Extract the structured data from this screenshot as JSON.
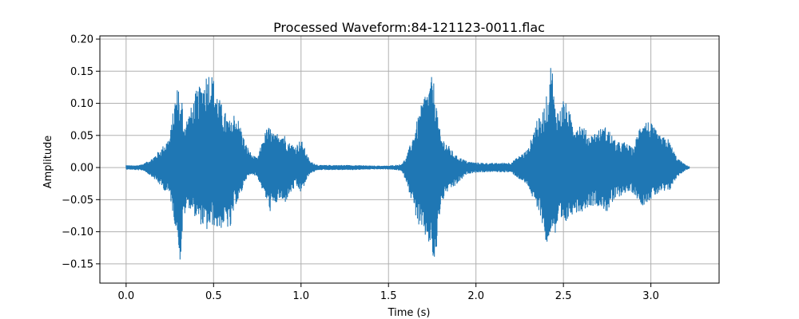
{
  "chart_data": {
    "type": "line",
    "title": "Processed Waveform:84-121123-0011.flac",
    "xlabel": "Time (s)",
    "ylabel": "Amplitude",
    "xlim": [
      -0.15,
      3.39
    ],
    "ylim": [
      -0.18,
      0.205
    ],
    "xticks": [
      0.0,
      0.5,
      1.0,
      1.5,
      2.0,
      2.5,
      3.0
    ],
    "xtick_labels": [
      "0.0",
      "0.5",
      "1.0",
      "1.5",
      "2.0",
      "2.5",
      "3.0"
    ],
    "yticks": [
      -0.15,
      -0.1,
      -0.05,
      0.0,
      0.05,
      0.1,
      0.15,
      0.2
    ],
    "ytick_labels": [
      "−0.15",
      "−0.10",
      "−0.05",
      "0.00",
      "0.05",
      "0.10",
      "0.15",
      "0.20"
    ],
    "grid": true,
    "series": [
      {
        "color": "#1f77b4",
        "envelope_times": [
          0.0,
          0.05,
          0.1,
          0.15,
          0.2,
          0.25,
          0.28,
          0.3,
          0.31,
          0.32,
          0.33,
          0.35,
          0.38,
          0.4,
          0.43,
          0.46,
          0.48,
          0.5,
          0.53,
          0.56,
          0.6,
          0.62,
          0.65,
          0.68,
          0.72,
          0.75,
          0.8,
          0.82,
          0.85,
          0.88,
          0.9,
          0.93,
          0.97,
          1.0,
          1.05,
          1.1,
          1.2,
          1.3,
          1.4,
          1.5,
          1.57,
          1.6,
          1.64,
          1.68,
          1.71,
          1.73,
          1.75,
          1.77,
          1.78,
          1.8,
          1.83,
          1.88,
          1.95,
          2.0,
          2.1,
          2.2,
          2.3,
          2.35,
          2.37,
          2.4,
          2.42,
          2.43,
          2.45,
          2.48,
          2.5,
          2.53,
          2.56,
          2.6,
          2.65,
          2.7,
          2.75,
          2.8,
          2.85,
          2.9,
          2.95,
          3.0,
          3.05,
          3.1,
          3.15,
          3.2,
          3.22
        ],
        "envelope_max": [
          0.004,
          0.003,
          0.006,
          0.015,
          0.03,
          0.05,
          0.11,
          0.135,
          0.09,
          0.11,
          0.07,
          0.08,
          0.1,
          0.12,
          0.13,
          0.15,
          0.155,
          0.14,
          0.11,
          0.09,
          0.07,
          0.09,
          0.07,
          0.04,
          0.02,
          0.015,
          0.06,
          0.065,
          0.05,
          0.06,
          0.055,
          0.04,
          0.035,
          0.045,
          0.01,
          0.004,
          0.004,
          0.004,
          0.003,
          0.003,
          0.005,
          0.015,
          0.05,
          0.09,
          0.12,
          0.125,
          0.145,
          0.12,
          0.08,
          0.05,
          0.04,
          0.02,
          0.01,
          0.008,
          0.007,
          0.008,
          0.03,
          0.08,
          0.075,
          0.11,
          0.12,
          0.185,
          0.1,
          0.09,
          0.11,
          0.09,
          0.07,
          0.07,
          0.05,
          0.06,
          0.065,
          0.04,
          0.04,
          0.03,
          0.08,
          0.07,
          0.05,
          0.045,
          0.015,
          0.004,
          0.002
        ],
        "envelope_min": [
          -0.003,
          -0.004,
          -0.005,
          -0.015,
          -0.03,
          -0.045,
          -0.09,
          -0.12,
          -0.155,
          -0.11,
          -0.08,
          -0.06,
          -0.07,
          -0.08,
          -0.09,
          -0.1,
          -0.095,
          -0.09,
          -0.1,
          -0.09,
          -0.1,
          -0.06,
          -0.05,
          -0.02,
          -0.01,
          -0.015,
          -0.05,
          -0.07,
          -0.06,
          -0.05,
          -0.06,
          -0.045,
          -0.03,
          -0.04,
          -0.01,
          -0.004,
          -0.004,
          -0.004,
          -0.003,
          -0.003,
          -0.005,
          -0.02,
          -0.06,
          -0.1,
          -0.11,
          -0.12,
          -0.14,
          -0.165,
          -0.1,
          -0.06,
          -0.04,
          -0.03,
          -0.01,
          -0.008,
          -0.007,
          -0.008,
          -0.03,
          -0.07,
          -0.075,
          -0.12,
          -0.13,
          -0.09,
          -0.11,
          -0.09,
          -0.1,
          -0.08,
          -0.07,
          -0.07,
          -0.06,
          -0.06,
          -0.07,
          -0.05,
          -0.04,
          -0.04,
          -0.06,
          -0.05,
          -0.04,
          -0.04,
          -0.015,
          -0.004,
          -0.002
        ]
      }
    ]
  }
}
